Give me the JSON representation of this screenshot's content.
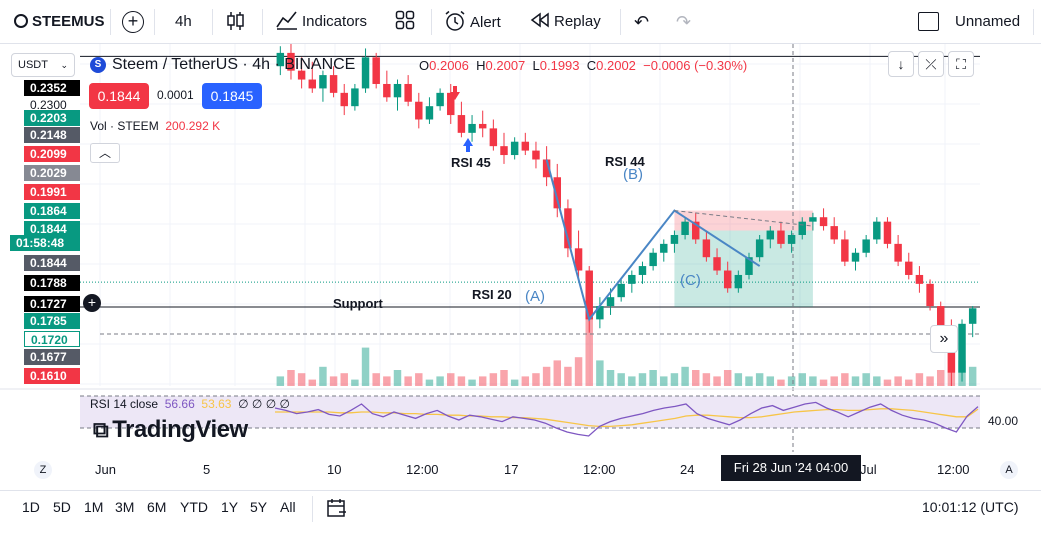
{
  "toolbar": {
    "symbol": "STEEMUSDT",
    "symbol_display": "STEEMUS",
    "interval": "4h",
    "indicators": "Indicators",
    "alert": "Alert",
    "replay": "Replay",
    "layout_name": "Unnamed"
  },
  "legend": {
    "title": "Steem / TetherUS · 4h · BINANCE",
    "o_label": "O",
    "o": "0.2006",
    "h_label": "H",
    "h": "0.2007",
    "l_label": "L",
    "l": "0.1993",
    "c_label": "C",
    "c": "0.2002",
    "change": "−0.0006 (−0.30%)",
    "sell_price": "0.1844",
    "spread": "0.0001",
    "buy_price": "0.1845",
    "vol_label": "Vol · STEEM",
    "vol_value": "200.292 K",
    "rsi_label": "RSI 14 close",
    "rsi_value": "56.66",
    "rsi_ma_value": "53.63",
    "rsi_extra": "∅ ∅ ∅ ∅"
  },
  "currency": "USDT",
  "price_labels": [
    {
      "text": "0.2352",
      "bg": "#000000",
      "fg": "#ffffff"
    },
    {
      "text": "0.2300",
      "bg": "none",
      "fg": "#131722"
    },
    {
      "text": "0.2203",
      "bg": "#089981",
      "fg": "#ffffff"
    },
    {
      "text": "0.2148",
      "bg": "#555a66",
      "fg": "#ffffff"
    },
    {
      "text": "0.2099",
      "bg": "#f23645",
      "fg": "#ffffff"
    },
    {
      "text": "0.2029",
      "bg": "#868993",
      "fg": "#ffffff"
    },
    {
      "text": "0.1991",
      "bg": "#f23645",
      "fg": "#ffffff"
    },
    {
      "text": "0.1864",
      "bg": "#089981",
      "fg": "#ffffff"
    },
    {
      "text": "0.1844",
      "bg": "#089981",
      "fg": "#ffffff"
    },
    {
      "text": "01:58:48",
      "bg": "#089981",
      "fg": "#ffffff"
    },
    {
      "text": "0.1844",
      "bg": "#555a66",
      "fg": "#ffffff"
    },
    {
      "text": "0.1788",
      "bg": "#000000",
      "fg": "#ffffff"
    },
    {
      "text": "0.1727",
      "bg": "#000000",
      "fg": "#ffffff"
    },
    {
      "text": "0.1785",
      "bg": "#089981",
      "fg": "#ffffff"
    },
    {
      "text": "0.1720",
      "bg": "#ffffff",
      "fg": "#089981"
    },
    {
      "text": "0.1677",
      "bg": "#555a66",
      "fg": "#ffffff"
    },
    {
      "text": "0.1610",
      "bg": "#f23645",
      "fg": "#ffffff"
    }
  ],
  "rsi_axis_label": "40.00",
  "annotations": {
    "rsi45": "RSI 45",
    "rsi44": "RSI 44",
    "rsi20": "RSI 20",
    "support": "Support",
    "a": "(A)",
    "b": "(B)",
    "c": "(C)"
  },
  "x_labels": [
    "Jun",
    "5",
    "10",
    "12:00",
    "17",
    "12:00",
    "24",
    "Jul",
    "12:00"
  ],
  "crosshair_time": "Fri 28 Jun '24   04:00",
  "time_ranges": [
    "1D",
    "5D",
    "1M",
    "3M",
    "6M",
    "YTD",
    "1Y",
    "5Y",
    "All"
  ],
  "clock": "10:01:12 (UTC)",
  "watermark": "TradingView",
  "chart_data": {
    "type": "candlestick",
    "title": "Steem / TetherUS · 4h · BINANCE",
    "ylim": [
      0.161,
      0.238
    ],
    "horizontal_lines": [
      0.2352,
      0.1788
    ],
    "support_level": 0.1727,
    "ohlc": [
      [
        0.233,
        0.2375,
        0.231,
        0.236
      ],
      [
        0.236,
        0.238,
        0.23,
        0.232
      ],
      [
        0.232,
        0.235,
        0.228,
        0.23
      ],
      [
        0.23,
        0.234,
        0.227,
        0.228
      ],
      [
        0.228,
        0.232,
        0.225,
        0.231
      ],
      [
        0.231,
        0.233,
        0.226,
        0.227
      ],
      [
        0.227,
        0.229,
        0.222,
        0.224
      ],
      [
        0.224,
        0.229,
        0.223,
        0.228
      ],
      [
        0.228,
        0.237,
        0.227,
        0.235
      ],
      [
        0.235,
        0.236,
        0.228,
        0.229
      ],
      [
        0.229,
        0.232,
        0.225,
        0.226
      ],
      [
        0.226,
        0.23,
        0.223,
        0.229
      ],
      [
        0.229,
        0.231,
        0.224,
        0.225
      ],
      [
        0.225,
        0.227,
        0.219,
        0.221
      ],
      [
        0.221,
        0.226,
        0.22,
        0.224
      ],
      [
        0.224,
        0.228,
        0.223,
        0.227
      ],
      [
        0.227,
        0.229,
        0.22,
        0.222
      ],
      [
        0.222,
        0.225,
        0.217,
        0.218
      ],
      [
        0.218,
        0.222,
        0.216,
        0.22
      ],
      [
        0.22,
        0.223,
        0.217,
        0.219
      ],
      [
        0.219,
        0.221,
        0.214,
        0.215
      ],
      [
        0.215,
        0.218,
        0.211,
        0.213
      ],
      [
        0.213,
        0.217,
        0.212,
        0.216
      ],
      [
        0.216,
        0.218,
        0.213,
        0.214
      ],
      [
        0.214,
        0.216,
        0.21,
        0.212
      ],
      [
        0.212,
        0.215,
        0.206,
        0.208
      ],
      [
        0.208,
        0.211,
        0.199,
        0.201
      ],
      [
        0.201,
        0.203,
        0.19,
        0.192
      ],
      [
        0.192,
        0.196,
        0.185,
        0.187
      ],
      [
        0.187,
        0.188,
        0.173,
        0.176
      ],
      [
        0.176,
        0.181,
        0.174,
        0.179
      ],
      [
        0.179,
        0.183,
        0.177,
        0.181
      ],
      [
        0.181,
        0.185,
        0.18,
        0.184
      ],
      [
        0.184,
        0.187,
        0.182,
        0.186
      ],
      [
        0.186,
        0.189,
        0.184,
        0.188
      ],
      [
        0.188,
        0.192,
        0.187,
        0.191
      ],
      [
        0.191,
        0.194,
        0.189,
        0.193
      ],
      [
        0.193,
        0.196,
        0.191,
        0.195
      ],
      [
        0.195,
        0.199,
        0.194,
        0.198
      ],
      [
        0.198,
        0.2,
        0.193,
        0.194
      ],
      [
        0.194,
        0.196,
        0.189,
        0.19
      ],
      [
        0.19,
        0.192,
        0.186,
        0.187
      ],
      [
        0.187,
        0.189,
        0.182,
        0.183
      ],
      [
        0.183,
        0.187,
        0.182,
        0.186
      ],
      [
        0.186,
        0.191,
        0.185,
        0.19
      ],
      [
        0.19,
        0.195,
        0.189,
        0.194
      ],
      [
        0.194,
        0.197,
        0.192,
        0.196
      ],
      [
        0.196,
        0.198,
        0.192,
        0.193
      ],
      [
        0.193,
        0.196,
        0.191,
        0.195
      ],
      [
        0.195,
        0.199,
        0.194,
        0.198
      ],
      [
        0.198,
        0.2,
        0.196,
        0.199
      ],
      [
        0.199,
        0.201,
        0.196,
        0.197
      ],
      [
        0.197,
        0.199,
        0.193,
        0.194
      ],
      [
        0.194,
        0.196,
        0.188,
        0.189
      ],
      [
        0.189,
        0.192,
        0.187,
        0.191
      ],
      [
        0.191,
        0.195,
        0.19,
        0.194
      ],
      [
        0.194,
        0.199,
        0.193,
        0.198
      ],
      [
        0.198,
        0.199,
        0.192,
        0.193
      ],
      [
        0.193,
        0.195,
        0.188,
        0.189
      ],
      [
        0.189,
        0.191,
        0.185,
        0.186
      ],
      [
        0.186,
        0.188,
        0.182,
        0.184
      ],
      [
        0.184,
        0.185,
        0.178,
        0.179
      ],
      [
        0.179,
        0.18,
        0.17,
        0.172
      ],
      [
        0.172,
        0.176,
        0.161,
        0.164
      ],
      [
        0.164,
        0.176,
        0.162,
        0.175
      ],
      [
        0.175,
        0.179,
        0.172,
        0.1785
      ]
    ],
    "volume": [
      3,
      5,
      4,
      2,
      6,
      3,
      4,
      2,
      12,
      4,
      3,
      5,
      3,
      4,
      2,
      3,
      4,
      3,
      2,
      3,
      4,
      5,
      2,
      3,
      4,
      6,
      8,
      6,
      9,
      25,
      8,
      5,
      4,
      3,
      4,
      5,
      3,
      4,
      6,
      5,
      4,
      3,
      5,
      4,
      3,
      4,
      3,
      2,
      3,
      4,
      3,
      2,
      3,
      4,
      3,
      4,
      3,
      2,
      3,
      2,
      4,
      3,
      5,
      12,
      8,
      6
    ],
    "rsi": [
      55,
      52,
      48,
      50,
      53,
      47,
      45,
      52,
      60,
      48,
      44,
      50,
      46,
      42,
      48,
      52,
      45,
      40,
      46,
      44,
      41,
      38,
      44,
      42,
      40,
      36,
      30,
      25,
      22,
      20,
      32,
      38,
      42,
      45,
      48,
      52,
      55,
      57,
      60,
      48,
      42,
      38,
      34,
      40,
      48,
      55,
      58,
      52,
      56,
      60,
      62,
      55,
      50,
      44,
      50,
      56,
      60,
      52,
      46,
      42,
      40,
      36,
      30,
      25,
      45,
      56.66
    ],
    "rsi_ma": [
      50,
      50,
      50,
      50,
      50,
      50,
      49,
      49,
      50,
      50,
      49,
      49,
      48,
      48,
      47,
      47,
      46,
      46,
      45,
      45,
      44,
      44,
      43,
      43,
      42,
      41,
      39,
      37,
      35,
      33,
      32,
      32,
      33,
      34,
      36,
      38,
      40,
      42,
      45,
      46,
      46,
      45,
      44,
      43,
      43,
      44,
      46,
      48,
      50,
      51,
      52,
      53,
      53,
      52,
      52,
      53,
      54,
      54,
      53,
      52,
      50,
      48,
      46,
      44,
      44,
      53.63
    ],
    "rsi_axis": "40.00"
  }
}
